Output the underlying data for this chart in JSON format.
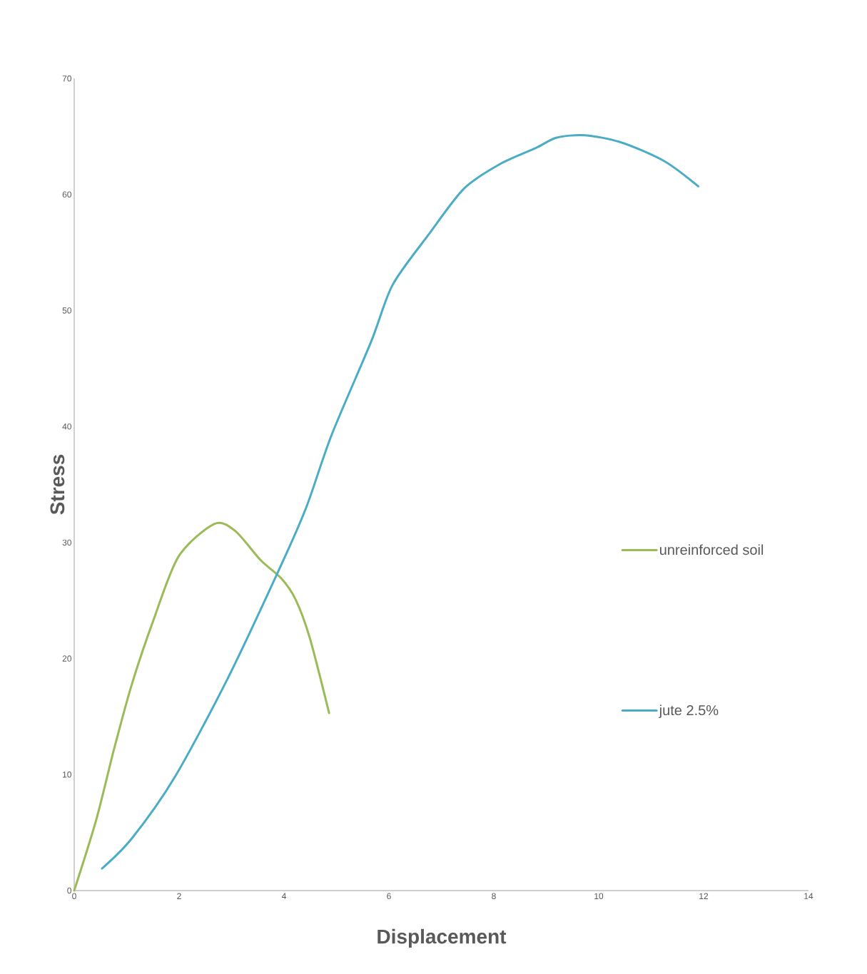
{
  "chart_data": {
    "type": "line",
    "xlabel": "Displacement",
    "ylabel": "Stress",
    "xlim": [
      0,
      14
    ],
    "ylim": [
      0,
      70
    ],
    "xticks": [
      0,
      2,
      4,
      6,
      8,
      10,
      12,
      14
    ],
    "yticks": [
      0,
      10,
      20,
      30,
      40,
      50,
      60,
      70
    ],
    "grid": false,
    "legend": "right",
    "marker": "none",
    "line_style": "solid",
    "series": [
      {
        "name": "unreinforced soil",
        "color": "#9bbb59",
        "x": [
          0,
          0.42,
          0.76,
          1.1,
          1.51,
          1.99,
          2.67,
          3.07,
          3.55,
          3.95,
          4.22,
          4.49,
          4.86
        ],
        "values": [
          0,
          6.1,
          12.2,
          17.8,
          23.3,
          28.8,
          31.6,
          31.0,
          28.5,
          26.9,
          25.1,
          21.8,
          15.3
        ]
      },
      {
        "name": "jute 2.5%",
        "color": "#4bacc6",
        "x": [
          0.53,
          1.1,
          1.92,
          2.94,
          3.96,
          4.43,
          4.91,
          5.66,
          6.07,
          6.75,
          7.43,
          8.11,
          8.8,
          9.2,
          9.74,
          10.42,
          11.24,
          11.9
        ],
        "values": [
          1.9,
          4.5,
          9.8,
          18.4,
          28.2,
          33.1,
          39.3,
          47.3,
          52.2,
          56.5,
          60.5,
          62.6,
          64.0,
          64.9,
          65.1,
          64.5,
          62.9,
          60.7
        ]
      }
    ]
  }
}
